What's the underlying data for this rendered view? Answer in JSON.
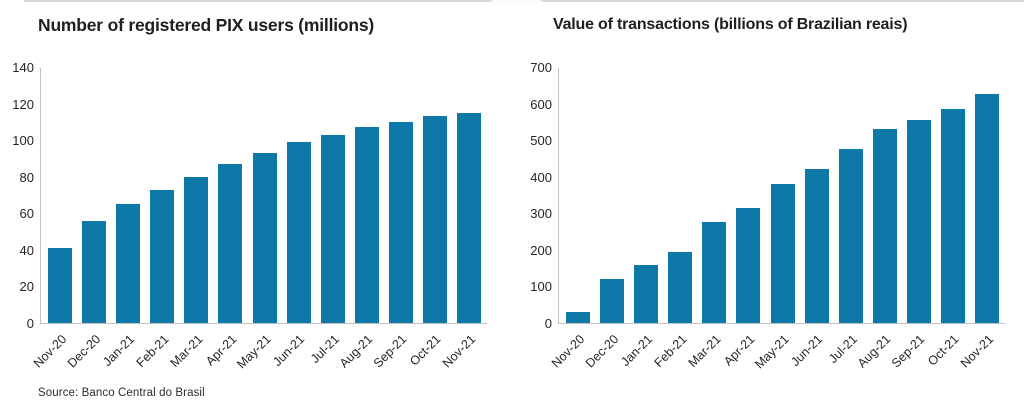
{
  "figure": {
    "source_note": "Source: Banco Central do Brasil"
  },
  "style": {
    "background": "#ffffff",
    "bar_color": "#0e78a8",
    "axis_color": "#c2c2c2",
    "title_color": "#1f1f1f",
    "tick_color": "#262626",
    "source_color": "#2e2e2e"
  },
  "chart_data": [
    {
      "type": "bar",
      "title": "Number of registered PIX users (millions)",
      "xlabel": "",
      "ylabel": "",
      "ylim": [
        0,
        140
      ],
      "ytick_step": 20,
      "grid": false,
      "legend": "none",
      "categories": [
        "Nov-20",
        "Dec-20",
        "Jan-21",
        "Feb-21",
        "Mar-21",
        "Apr-21",
        "May-21",
        "Jun-21",
        "Jul-21",
        "Aug-21",
        "Sep-21",
        "Oct-21",
        "Nov-21"
      ],
      "values": [
        41,
        56,
        65,
        73,
        80,
        87,
        93,
        99,
        103,
        107,
        110,
        113,
        115
      ]
    },
    {
      "type": "bar",
      "title": "Value of transactions (billions of Brazilian reais)",
      "xlabel": "",
      "ylabel": "",
      "ylim": [
        0,
        700
      ],
      "ytick_step": 100,
      "grid": false,
      "legend": "none",
      "categories": [
        "Nov-20",
        "Dec-20",
        "Jan-21",
        "Feb-21",
        "Mar-21",
        "Apr-21",
        "May-21",
        "Jun-21",
        "Jul-21",
        "Aug-21",
        "Sep-21",
        "Oct-21",
        "Nov-21"
      ],
      "values": [
        30,
        120,
        160,
        195,
        275,
        315,
        380,
        420,
        475,
        530,
        555,
        585,
        625
      ]
    }
  ]
}
